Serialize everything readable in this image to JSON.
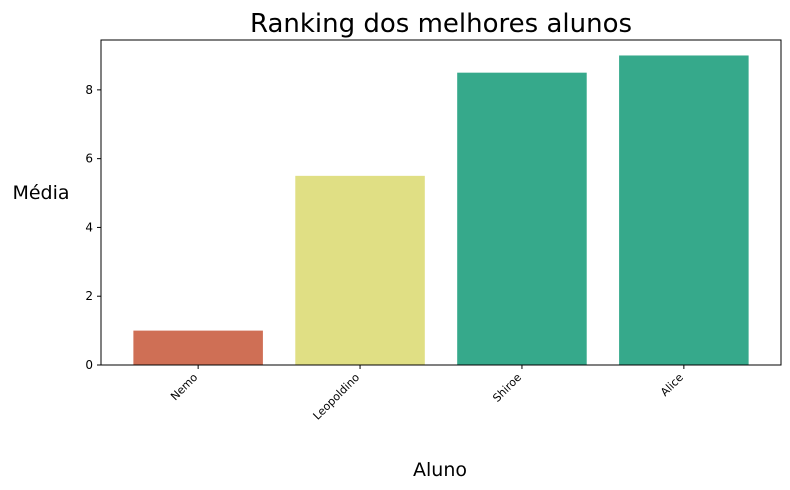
{
  "chart_data": {
    "type": "bar",
    "title": "Ranking dos melhores alunos",
    "xlabel": "Aluno",
    "ylabel": "Média",
    "categories": [
      "Nemo",
      "Leopoldino",
      "Shiroe",
      "Alice"
    ],
    "values": [
      1.0,
      5.5,
      8.5,
      9.0
    ],
    "colors": [
      "#cf6f55",
      "#e0df84",
      "#36a98b",
      "#36a98b"
    ],
    "ylim": [
      0,
      9.45
    ],
    "yticks": [
      0,
      2,
      4,
      6,
      8
    ],
    "grid": false,
    "legend": "none"
  }
}
